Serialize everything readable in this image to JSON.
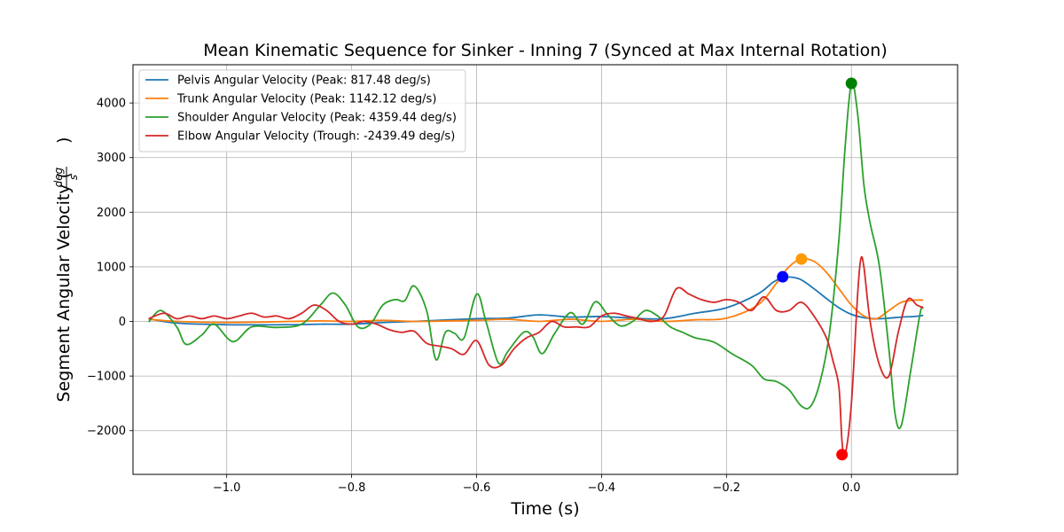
{
  "chart_data": {
    "type": "line",
    "title": "Mean Kinematic Sequence for Sinker - Inning 7 (Synced at Max Internal Rotation)",
    "xlabel": "Time (s)",
    "ylabel": "Segment Angular Velocity (deg/s)",
    "ylabel_prefix": "Segment Angular Velocity (",
    "ylabel_num": "deg",
    "ylabel_den": "s",
    "ylabel_suffix": ")",
    "xlim": [
      -1.15,
      0.17
    ],
    "ylim": [
      -2800,
      4700
    ],
    "xticks": [
      -1.0,
      -0.8,
      -0.6,
      -0.4,
      -0.2,
      0.0
    ],
    "xtick_labels": [
      "−1.0",
      "−0.8",
      "−0.6",
      "−0.4",
      "−0.2",
      "0.0"
    ],
    "yticks": [
      -2000,
      -1000,
      0,
      1000,
      2000,
      3000,
      4000
    ],
    "ytick_labels": [
      "−2000",
      "−1000",
      "0",
      "1000",
      "2000",
      "3000",
      "4000"
    ],
    "grid": true,
    "legend_position": "top-left",
    "series": [
      {
        "name": "Pelvis Angular Velocity (Peak: 817.48 deg/s)",
        "color": "#1f77b4",
        "x": [
          -1.125,
          -1.08,
          -1.0,
          -0.9,
          -0.85,
          -0.8,
          -0.75,
          -0.7,
          -0.6,
          -0.55,
          -0.5,
          -0.45,
          -0.4,
          -0.35,
          -0.3,
          -0.25,
          -0.2,
          -0.15,
          -0.125,
          -0.11,
          -0.095,
          -0.08,
          -0.06,
          -0.04,
          -0.02,
          0.0,
          0.02,
          0.04,
          0.06,
          0.08,
          0.1,
          0.115
        ],
        "y": [
          50,
          -30,
          -60,
          -60,
          -50,
          -50,
          -20,
          0,
          50,
          60,
          120,
          80,
          90,
          60,
          50,
          150,
          250,
          500,
          720,
          800,
          810,
          760,
          600,
          420,
          250,
          130,
          70,
          50,
          60,
          80,
          90,
          110
        ],
        "marker": {
          "x": -0.11,
          "y": 817.48,
          "color": "#0000ff"
        }
      },
      {
        "name": "Trunk Angular Velocity (Peak: 1142.12 deg/s)",
        "color": "#ff7f0e",
        "x": [
          -1.125,
          -1.08,
          -1.0,
          -0.9,
          -0.85,
          -0.8,
          -0.75,
          -0.7,
          -0.6,
          -0.55,
          -0.5,
          -0.45,
          -0.4,
          -0.35,
          -0.3,
          -0.25,
          -0.2,
          -0.15,
          -0.12,
          -0.1,
          -0.08,
          -0.06,
          -0.04,
          -0.02,
          0.0,
          0.02,
          0.04,
          0.06,
          0.08,
          0.1,
          0.115
        ],
        "y": [
          40,
          0,
          -20,
          0,
          10,
          0,
          20,
          0,
          20,
          40,
          0,
          40,
          0,
          40,
          0,
          30,
          60,
          300,
          700,
          1000,
          1140,
          1100,
          900,
          600,
          300,
          100,
          50,
          200,
          350,
          390,
          390
        ],
        "marker": {
          "x": -0.08,
          "y": 1142.12,
          "color": "#ff9900"
        }
      },
      {
        "name": "Shoulder Angular Velocity (Peak: 4359.44 deg/s)",
        "color": "#2ca02c",
        "x": [
          -1.125,
          -1.105,
          -1.08,
          -1.065,
          -1.04,
          -1.02,
          -0.99,
          -0.96,
          -0.92,
          -0.88,
          -0.85,
          -0.83,
          -0.81,
          -0.79,
          -0.77,
          -0.75,
          -0.73,
          -0.715,
          -0.7,
          -0.68,
          -0.665,
          -0.65,
          -0.635,
          -0.62,
          -0.6,
          -0.585,
          -0.565,
          -0.55,
          -0.525,
          -0.51,
          -0.495,
          -0.475,
          -0.45,
          -0.43,
          -0.41,
          -0.39,
          -0.37,
          -0.35,
          -0.33,
          -0.31,
          -0.29,
          -0.27,
          -0.25,
          -0.22,
          -0.19,
          -0.16,
          -0.14,
          -0.12,
          -0.1,
          -0.08,
          -0.065,
          -0.05,
          -0.035,
          -0.02,
          -0.01,
          0.0,
          0.01,
          0.02,
          0.03,
          0.045,
          0.06,
          0.07,
          0.08,
          0.095,
          0.11,
          0.115
        ],
        "y": [
          -10,
          200,
          -100,
          -420,
          -250,
          -50,
          -370,
          -100,
          -110,
          -50,
          300,
          520,
          300,
          -100,
          -50,
          300,
          400,
          380,
          650,
          200,
          -700,
          -200,
          -220,
          -300,
          500,
          0,
          -760,
          -550,
          -200,
          -280,
          -590,
          -220,
          160,
          -50,
          360,
          120,
          -80,
          0,
          200,
          100,
          -100,
          -200,
          -300,
          -380,
          -600,
          -800,
          -1050,
          -1100,
          -1250,
          -1550,
          -1550,
          -1100,
          -200,
          1500,
          3200,
          4359,
          3800,
          2500,
          1800,
          1000,
          -500,
          -1700,
          -1900,
          -900,
          150,
          250
        ],
        "marker": {
          "x": 0.0,
          "y": 4359.44,
          "color": "#008000"
        }
      },
      {
        "name": "Elbow Angular Velocity (Trough: -2439.49 deg/s)",
        "color": "#d62728",
        "x": [
          -1.125,
          -1.1,
          -1.08,
          -1.06,
          -1.04,
          -1.02,
          -1.0,
          -0.98,
          -0.96,
          -0.94,
          -0.92,
          -0.9,
          -0.88,
          -0.86,
          -0.84,
          -0.82,
          -0.8,
          -0.78,
          -0.76,
          -0.74,
          -0.72,
          -0.7,
          -0.68,
          -0.66,
          -0.64,
          -0.62,
          -0.6,
          -0.58,
          -0.56,
          -0.54,
          -0.52,
          -0.5,
          -0.48,
          -0.46,
          -0.44,
          -0.42,
          -0.4,
          -0.38,
          -0.36,
          -0.34,
          -0.32,
          -0.3,
          -0.28,
          -0.26,
          -0.24,
          -0.22,
          -0.2,
          -0.18,
          -0.16,
          -0.14,
          -0.12,
          -0.1,
          -0.08,
          -0.06,
          -0.04,
          -0.03,
          -0.02,
          -0.015,
          -0.01,
          0.0,
          0.01,
          0.015,
          0.02,
          0.03,
          0.045,
          0.06,
          0.075,
          0.09,
          0.105,
          0.115
        ],
        "y": [
          50,
          150,
          50,
          100,
          50,
          100,
          50,
          100,
          150,
          80,
          100,
          50,
          150,
          300,
          200,
          0,
          -50,
          0,
          -50,
          -150,
          -200,
          -180,
          -400,
          -450,
          -500,
          -600,
          -350,
          -800,
          -800,
          -500,
          -300,
          -200,
          0,
          -100,
          -100,
          -100,
          100,
          150,
          100,
          50,
          0,
          100,
          600,
          500,
          400,
          350,
          400,
          350,
          200,
          450,
          200,
          200,
          350,
          100,
          -300,
          -700,
          -1200,
          -2200,
          -2439,
          -1500,
          500,
          1140,
          1000,
          0,
          -800,
          -1000,
          -200,
          400,
          300,
          250
        ],
        "marker": {
          "x": -0.015,
          "y": -2439.49,
          "color": "#ff0000"
        }
      }
    ]
  }
}
